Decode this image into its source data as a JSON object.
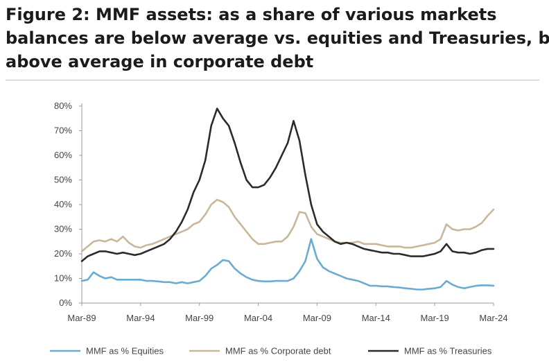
{
  "title": {
    "line1": "Figure 2: MMF assets: as a share of various markets",
    "line2": "balances are below average vs. equities and Treasuries, but",
    "line3": "above average in corporate debt"
  },
  "colors": {
    "equities": "#6aabd2",
    "corporate": "#c9b79b",
    "treasuries": "#2b2b2b",
    "axis": "#9a9a9a",
    "rule": "#bfc3c7"
  },
  "chart_data": {
    "type": "line",
    "title": "",
    "xlabel": "",
    "ylabel": "",
    "xlim": [
      1989.2,
      2024.2
    ],
    "ylim": [
      0,
      80
    ],
    "grid": false,
    "legend_position": "bottom",
    "x_ticks": [
      "Mar-89",
      "Mar-94",
      "Mar-99",
      "Mar-04",
      "Mar-09",
      "Mar-14",
      "Mar-19",
      "Mar-24"
    ],
    "y_ticks": [
      "0%",
      "10%",
      "20%",
      "30%",
      "40%",
      "50%",
      "60%",
      "70%",
      "80%"
    ],
    "x": [
      1989.2,
      1989.7,
      1990.2,
      1990.7,
      1991.2,
      1991.7,
      1992.2,
      1992.7,
      1993.2,
      1993.7,
      1994.2,
      1994.7,
      1995.2,
      1995.7,
      1996.2,
      1996.7,
      1997.2,
      1997.7,
      1998.2,
      1998.7,
      1999.2,
      1999.7,
      2000.2,
      2000.7,
      2001.2,
      2001.7,
      2002.2,
      2002.7,
      2003.2,
      2003.7,
      2004.2,
      2004.7,
      2005.2,
      2005.7,
      2006.2,
      2006.7,
      2007.2,
      2007.7,
      2008.2,
      2008.7,
      2009.2,
      2009.7,
      2010.2,
      2010.7,
      2011.2,
      2011.7,
      2012.2,
      2012.7,
      2013.2,
      2013.7,
      2014.2,
      2014.7,
      2015.2,
      2015.7,
      2016.2,
      2016.7,
      2017.2,
      2017.7,
      2018.2,
      2018.7,
      2019.2,
      2019.7,
      2020.2,
      2020.7,
      2021.2,
      2021.7,
      2022.2,
      2022.7,
      2023.2,
      2023.7,
      2024.2
    ],
    "series": [
      {
        "name": "MMF as % Equities",
        "color_key": "equities",
        "values": [
          9,
          9.5,
          12.5,
          11,
          10,
          10.5,
          9.5,
          9.5,
          9.5,
          9.5,
          9.5,
          9,
          9,
          8.8,
          8.5,
          8.5,
          8,
          8.5,
          8,
          8.5,
          9,
          11,
          14,
          15.5,
          17.5,
          17,
          14,
          12,
          10.5,
          9.5,
          9,
          8.8,
          8.8,
          9,
          9,
          9,
          10,
          13,
          17,
          26,
          18,
          14.5,
          13,
          12,
          11,
          10,
          9.5,
          9,
          8,
          7,
          7,
          6.8,
          6.8,
          6.5,
          6.3,
          6,
          5.8,
          5.5,
          5.5,
          5.8,
          6,
          6.5,
          9,
          7.5,
          6.5,
          6,
          6.5,
          7,
          7.2,
          7.2,
          7
        ]
      },
      {
        "name": "MMF as % Corporate debt",
        "color_key": "corporate",
        "values": [
          21,
          23,
          25,
          25.5,
          25,
          26,
          25,
          27,
          24.5,
          23,
          22.5,
          23.5,
          24,
          25,
          26,
          27,
          28,
          29,
          30,
          32,
          33,
          36,
          40,
          42,
          41,
          39,
          35,
          32,
          29,
          26,
          24,
          24,
          24.5,
          25,
          25,
          27,
          31,
          37,
          36.5,
          31,
          28,
          27,
          26,
          25,
          24.5,
          24.5,
          24.5,
          25,
          24,
          24,
          24,
          23.5,
          23,
          23,
          23,
          22.5,
          22.5,
          23,
          23.5,
          24,
          24.5,
          26,
          32,
          30,
          29.5,
          30,
          30,
          31,
          32.5,
          35.5,
          38
        ]
      },
      {
        "name": "MMF as % Treasuries",
        "color_key": "treasuries",
        "values": [
          17,
          19,
          20,
          21,
          21,
          20.5,
          20,
          20.5,
          20,
          19.5,
          20,
          21,
          22,
          23,
          24,
          26,
          29,
          33,
          38,
          45,
          50,
          58,
          72,
          79,
          75,
          72,
          65,
          57,
          50,
          47,
          47,
          48,
          51,
          55,
          60,
          65,
          74,
          66,
          52,
          40,
          32,
          29,
          27,
          25,
          24,
          24.5,
          24,
          23,
          22,
          21.5,
          21,
          20.5,
          20.5,
          20,
          20,
          19.5,
          19,
          19,
          19,
          19.5,
          20,
          21,
          24,
          21,
          20.5,
          20.5,
          20,
          20.5,
          21.5,
          22,
          22
        ]
      }
    ]
  }
}
